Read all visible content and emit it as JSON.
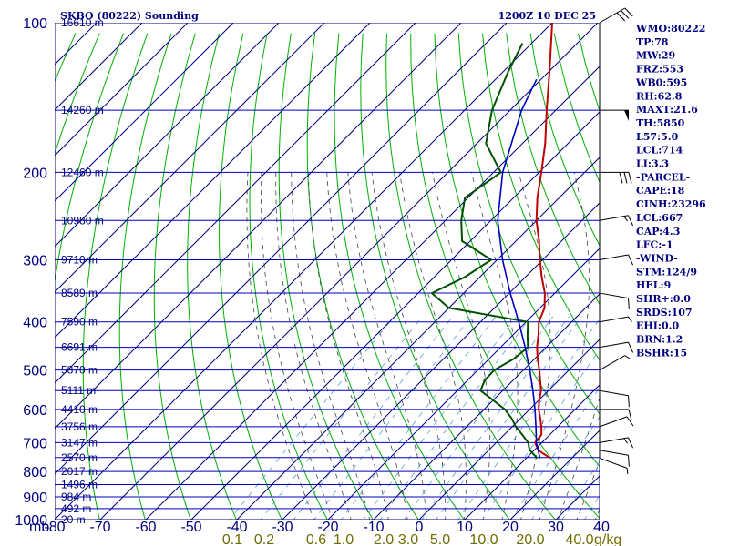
{
  "header": {
    "title": "SKBO (80222) Sounding",
    "time": "1200Z 10 DEC 25"
  },
  "indices": [
    "WMO:80222",
    "TP:78",
    "MW:29",
    "FRZ:553",
    "WB0:595",
    "RH:62.8",
    "MAXT:21.6",
    "TH:5850",
    "L57:5.0",
    "LCL:714",
    "LI:3.3",
    "-PARCEL-",
    "CAPE:18",
    "CINH:23296",
    "LCL:667",
    "CAP:4.3",
    "LFC:-1",
    "-WIND-",
    "STM:124/9",
    "HEL:9",
    "SHR+:0.0",
    "SRDS:107",
    "EHI:0.0",
    "BRN:1.2",
    "BSHR:15"
  ],
  "colors": {
    "frame": "#00007f",
    "isobar": "#0000c0",
    "dry_adiabat": "#00b000",
    "moist_adiabat": "#444444",
    "mixing_ratio": "#5a9bd5",
    "temperature": "#c00000",
    "dewpoint": "#005000",
    "parcel": "#0000c0"
  },
  "chart_data": {
    "type": "line",
    "title": "SKBO (80222) Sounding",
    "xlabel": "",
    "ylabel": "mb",
    "pressure_unit": "mb",
    "pressure_levels": [
      100,
      200,
      300,
      400,
      500,
      600,
      700,
      800,
      900,
      1000
    ],
    "temperature_ticks": [
      "-80",
      "-70",
      "-60",
      "-50",
      "-40",
      "-30",
      "-20",
      "-10",
      "0",
      "10",
      "20",
      "30",
      "40"
    ],
    "mixing_ratio_labels": [
      "0.1",
      "0.2",
      "0.6",
      "1.0",
      "2.0",
      "3.0",
      "5.0",
      "10.0",
      "20.0",
      "40.0"
    ],
    "mixing_ratio_unit": "g/kg",
    "height_labels": [
      {
        "p": 100,
        "label": "16610 m"
      },
      {
        "p": 150,
        "label": "14260 m"
      },
      {
        "p": 200,
        "label": "12460 m"
      },
      {
        "p": 250,
        "label": "10980 m"
      },
      {
        "p": 300,
        "label": "9710 m"
      },
      {
        "p": 350,
        "label": "8589 m"
      },
      {
        "p": 400,
        "label": "7590 m"
      },
      {
        "p": 450,
        "label": "6691 m"
      },
      {
        "p": 500,
        "label": "5870 m"
      },
      {
        "p": 550,
        "label": "5111 m"
      },
      {
        "p": 600,
        "label": "4410 m"
      },
      {
        "p": 650,
        "label": "3756 m"
      },
      {
        "p": 700,
        "label": "3147 m"
      },
      {
        "p": 750,
        "label": "2570 m"
      },
      {
        "p": 800,
        "label": "2017 m"
      },
      {
        "p": 850,
        "label": "1496 m"
      },
      {
        "p": 900,
        "label": "984 m"
      },
      {
        "p": 950,
        "label": "492 m"
      },
      {
        "p": 1000,
        "label": "20 m"
      }
    ],
    "series": [
      {
        "key": "temperature",
        "points": [
          [
            752,
            15.2
          ],
          [
            725,
            10.9
          ],
          [
            700,
            8.5
          ],
          [
            675,
            8.2
          ],
          [
            650,
            6.4
          ],
          [
            625,
            4.3
          ],
          [
            600,
            2.0
          ],
          [
            575,
            0.1
          ],
          [
            550,
            -1.6
          ],
          [
            525,
            -4.0
          ],
          [
            500,
            -6.5
          ],
          [
            475,
            -9.3
          ],
          [
            450,
            -12.0
          ],
          [
            425,
            -14.4
          ],
          [
            400,
            -17.2
          ],
          [
            375,
            -19.0
          ],
          [
            350,
            -22.2
          ],
          [
            325,
            -26.4
          ],
          [
            300,
            -30.6
          ],
          [
            275,
            -34.9
          ],
          [
            250,
            -40.0
          ],
          [
            225,
            -44.8
          ],
          [
            200,
            -49.5
          ],
          [
            175,
            -55.0
          ],
          [
            150,
            -62.0
          ],
          [
            125,
            -70.0
          ],
          [
            100,
            -80.0
          ]
        ]
      },
      {
        "key": "dewpoint",
        "points": [
          [
            752,
            12.4
          ],
          [
            725,
            9.0
          ],
          [
            700,
            7.0
          ],
          [
            675,
            4.0
          ],
          [
            650,
            0.8
          ],
          [
            625,
            -2.0
          ],
          [
            600,
            -5.4
          ],
          [
            575,
            -10.0
          ],
          [
            550,
            -14.9
          ],
          [
            525,
            -16.2
          ],
          [
            500,
            -16.4
          ],
          [
            475,
            -14.6
          ],
          [
            450,
            -14.0
          ],
          [
            425,
            -16.8
          ],
          [
            400,
            -19.6
          ],
          [
            375,
            -40.0
          ],
          [
            350,
            -47.0
          ],
          [
            325,
            -43.3
          ],
          [
            300,
            -41.3
          ],
          [
            275,
            -51.8
          ],
          [
            250,
            -56.5
          ],
          [
            225,
            -60.7
          ],
          [
            200,
            -58.4
          ],
          [
            175,
            -68.0
          ],
          [
            150,
            -74.0
          ],
          [
            125,
            -79.0
          ],
          [
            110,
            -82.0
          ]
        ]
      },
      {
        "key": "parcel",
        "points": [
          [
            752,
            13.0
          ],
          [
            700,
            8.8
          ],
          [
            650,
            5.2
          ],
          [
            600,
            1.2
          ],
          [
            550,
            -3.4
          ],
          [
            500,
            -8.6
          ],
          [
            450,
            -14.6
          ],
          [
            400,
            -21.6
          ],
          [
            350,
            -29.8
          ],
          [
            300,
            -38.8
          ],
          [
            250,
            -48.5
          ],
          [
            200,
            -58.0
          ],
          [
            150,
            -67.5
          ],
          [
            130,
            -71.0
          ]
        ]
      }
    ],
    "wind_barbs": [
      {
        "p": 752,
        "dir": 110,
        "kt": 5
      },
      {
        "p": 725,
        "dir": 100,
        "kt": 10
      },
      {
        "p": 700,
        "dir": 80,
        "kt": 15
      },
      {
        "p": 650,
        "dir": 70,
        "kt": 10
      },
      {
        "p": 600,
        "dir": 90,
        "kt": 10
      },
      {
        "p": 550,
        "dir": 100,
        "kt": 10
      },
      {
        "p": 500,
        "dir": 60,
        "kt": 5
      },
      {
        "p": 450,
        "dir": 80,
        "kt": 10
      },
      {
        "p": 400,
        "dir": 80,
        "kt": 5
      },
      {
        "p": 350,
        "dir": 100,
        "kt": 10
      },
      {
        "p": 300,
        "dir": 80,
        "kt": 10
      },
      {
        "p": 250,
        "dir": 80,
        "kt": 15
      },
      {
        "p": 200,
        "dir": 90,
        "kt": 30
      },
      {
        "p": 150,
        "dir": 90,
        "kt": 50
      },
      {
        "p": 100,
        "dir": 60,
        "kt": 30
      }
    ]
  }
}
